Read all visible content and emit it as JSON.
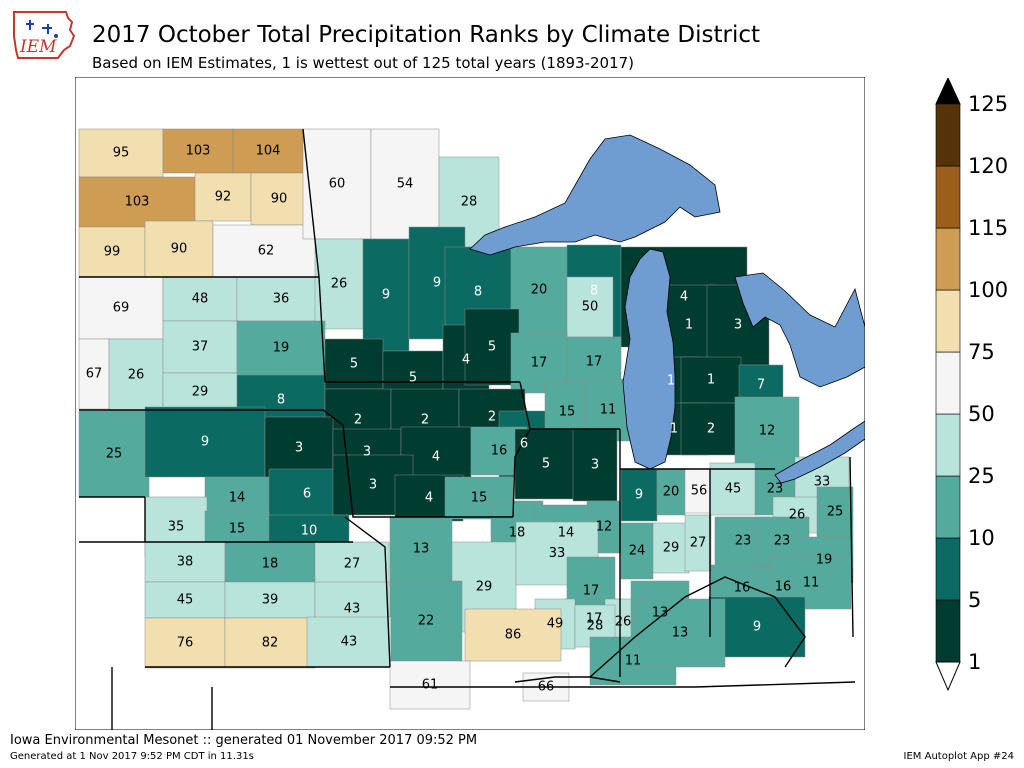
{
  "header": {
    "title": "2017 October Total Precipitation Ranks by Climate District",
    "subtitle": "Based on IEM Estimates, 1 is wettest out of 125 total years (1893-2017)",
    "logo_text": "IEM"
  },
  "footer": {
    "left_line1": "Iowa Environmental Mesonet :: generated 01 November 2017 09:52 PM",
    "left_line2": "Generated at 1 Nov 2017 9:52 PM CDT in 11.31s",
    "right": "IEM Autoplot App #24"
  },
  "colors": {
    "lake": "#6f9dd2",
    "border": "#000000",
    "background": "#ffffff"
  },
  "colorbar": {
    "labels": [
      "125",
      "120",
      "115",
      "100",
      "75",
      "50",
      "25",
      "10",
      "5",
      "1"
    ],
    "bins": [
      {
        "from": 1,
        "to": 5,
        "color": "#003c30"
      },
      {
        "from": 5,
        "to": 10,
        "color": "#0b6b63"
      },
      {
        "from": 10,
        "to": 25,
        "color": "#54aa9c"
      },
      {
        "from": 25,
        "to": 50,
        "color": "#b9e4dc"
      },
      {
        "from": 50,
        "to": 75,
        "color": "#f5f5f5"
      },
      {
        "from": 75,
        "to": 100,
        "color": "#f2dfb0"
      },
      {
        "from": 100,
        "to": 115,
        "color": "#cf9c53"
      },
      {
        "from": 115,
        "to": 120,
        "color": "#9b5e1b"
      },
      {
        "from": 120,
        "to": 125,
        "color": "#553209"
      }
    ],
    "over_color": "#000000",
    "under_color": "#ffffff"
  },
  "districts": [
    {
      "rank": 95
    },
    {
      "rank": 103
    },
    {
      "rank": 104
    },
    {
      "rank": 103
    },
    {
      "rank": 92
    },
    {
      "rank": 90
    },
    {
      "rank": 99
    },
    {
      "rank": 90
    },
    {
      "rank": 62
    },
    {
      "rank": 60
    },
    {
      "rank": 54
    },
    {
      "rank": 28
    },
    {
      "rank": 69
    },
    {
      "rank": 48
    },
    {
      "rank": 36
    },
    {
      "rank": 26
    },
    {
      "rank": 9
    },
    {
      "rank": 9
    },
    {
      "rank": 8
    },
    {
      "rank": 20
    },
    {
      "rank": 8
    },
    {
      "rank": 50
    },
    {
      "rank": 4
    },
    {
      "rank": 67
    },
    {
      "rank": 26
    },
    {
      "rank": 37
    },
    {
      "rank": 19
    },
    {
      "rank": 29
    },
    {
      "rank": 8
    },
    {
      "rank": 5
    },
    {
      "rank": 5
    },
    {
      "rank": 4
    },
    {
      "rank": 5
    },
    {
      "rank": 17
    },
    {
      "rank": 17
    },
    {
      "rank": 1
    },
    {
      "rank": 3
    },
    {
      "rank": 1
    },
    {
      "rank": 1
    },
    {
      "rank": 7
    },
    {
      "rank": 2
    },
    {
      "rank": 2
    },
    {
      "rank": 2
    },
    {
      "rank": 6
    },
    {
      "rank": 15
    },
    {
      "rank": 11
    },
    {
      "rank": 1
    },
    {
      "rank": 2
    },
    {
      "rank": 12
    },
    {
      "rank": 25
    },
    {
      "rank": 9
    },
    {
      "rank": 3
    },
    {
      "rank": 3
    },
    {
      "rank": 4
    },
    {
      "rank": 16
    },
    {
      "rank": 5
    },
    {
      "rank": 3
    },
    {
      "rank": 14
    },
    {
      "rank": 6
    },
    {
      "rank": 3
    },
    {
      "rank": 4
    },
    {
      "rank": 15
    },
    {
      "rank": 9
    },
    {
      "rank": 20
    },
    {
      "rank": 56
    },
    {
      "rank": 45
    },
    {
      "rank": 23
    },
    {
      "rank": 33
    },
    {
      "rank": 35
    },
    {
      "rank": 15
    },
    {
      "rank": 10
    },
    {
      "rank": 18
    },
    {
      "rank": 14
    },
    {
      "rank": 12
    },
    {
      "rank": 26
    },
    {
      "rank": 25
    },
    {
      "rank": 23
    },
    {
      "rank": 13
    },
    {
      "rank": 24
    },
    {
      "rank": 29
    },
    {
      "rank": 27
    },
    {
      "rank": 23
    },
    {
      "rank": 38
    },
    {
      "rank": 18
    },
    {
      "rank": 27
    },
    {
      "rank": 19
    },
    {
      "rank": 29
    },
    {
      "rank": 33
    },
    {
      "rank": 17
    },
    {
      "rank": 16
    },
    {
      "rank": 16
    },
    {
      "rank": 45
    },
    {
      "rank": 39
    },
    {
      "rank": 43
    },
    {
      "rank": 17
    },
    {
      "rank": 11
    },
    {
      "rank": 22
    },
    {
      "rank": 26
    },
    {
      "rank": 13
    },
    {
      "rank": 49
    },
    {
      "rank": 28
    },
    {
      "rank": 76
    },
    {
      "rank": 82
    },
    {
      "rank": 43
    },
    {
      "rank": 86
    },
    {
      "rank": 9
    },
    {
      "rank": 61
    },
    {
      "rank": 11
    },
    {
      "rank": 13
    },
    {
      "rank": 66
    }
  ]
}
